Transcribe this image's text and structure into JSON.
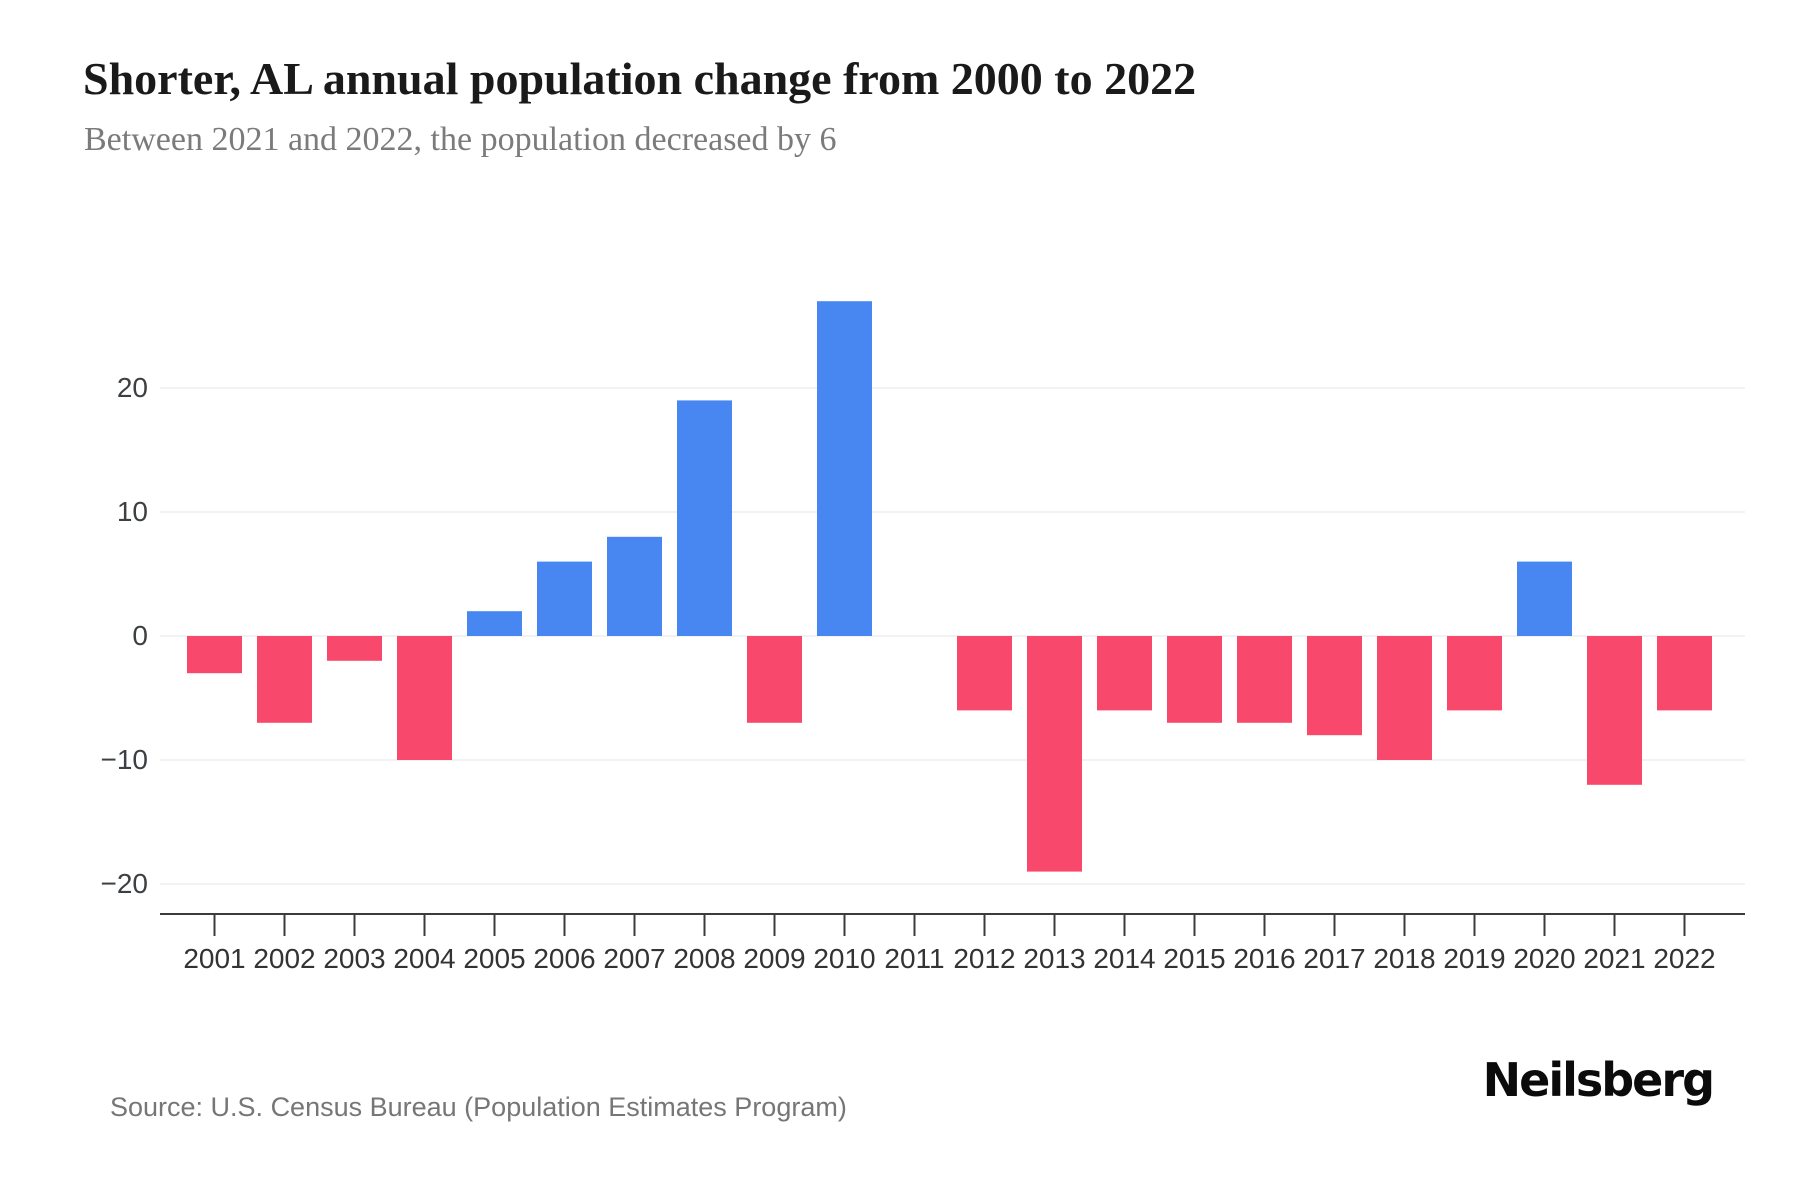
{
  "header": {
    "title": "Shorter, AL annual population change from 2000 to 2022",
    "subtitle": "Between 2021 and 2022, the population decreased by 6"
  },
  "chart_data": {
    "type": "bar",
    "title": "Shorter, AL annual population change from 2000 to 2022",
    "categories": [
      "2001",
      "2002",
      "2003",
      "2004",
      "2005",
      "2006",
      "2007",
      "2008",
      "2009",
      "2010",
      "2011",
      "2012",
      "2013",
      "2014",
      "2015",
      "2016",
      "2017",
      "2018",
      "2019",
      "2020",
      "2021",
      "2022"
    ],
    "values": [
      -3,
      -7,
      -2,
      -10,
      2,
      6,
      8,
      19,
      -7,
      27,
      0,
      -6,
      -19,
      -6,
      -7,
      -7,
      -8,
      -10,
      -6,
      6,
      -12,
      -6
    ],
    "yticks": [
      20,
      10,
      0,
      -10,
      -20
    ],
    "ylim": [
      -22.5,
      28
    ],
    "xlabel": "",
    "ylabel": "",
    "grid": true,
    "legend_position": "none",
    "bar_colors": {
      "positive": "#4887F2",
      "negative": "#F8496C"
    }
  },
  "footer": {
    "source": "Source: U.S. Census Bureau (Population Estimates Program)",
    "brand": "Neilsberg"
  }
}
